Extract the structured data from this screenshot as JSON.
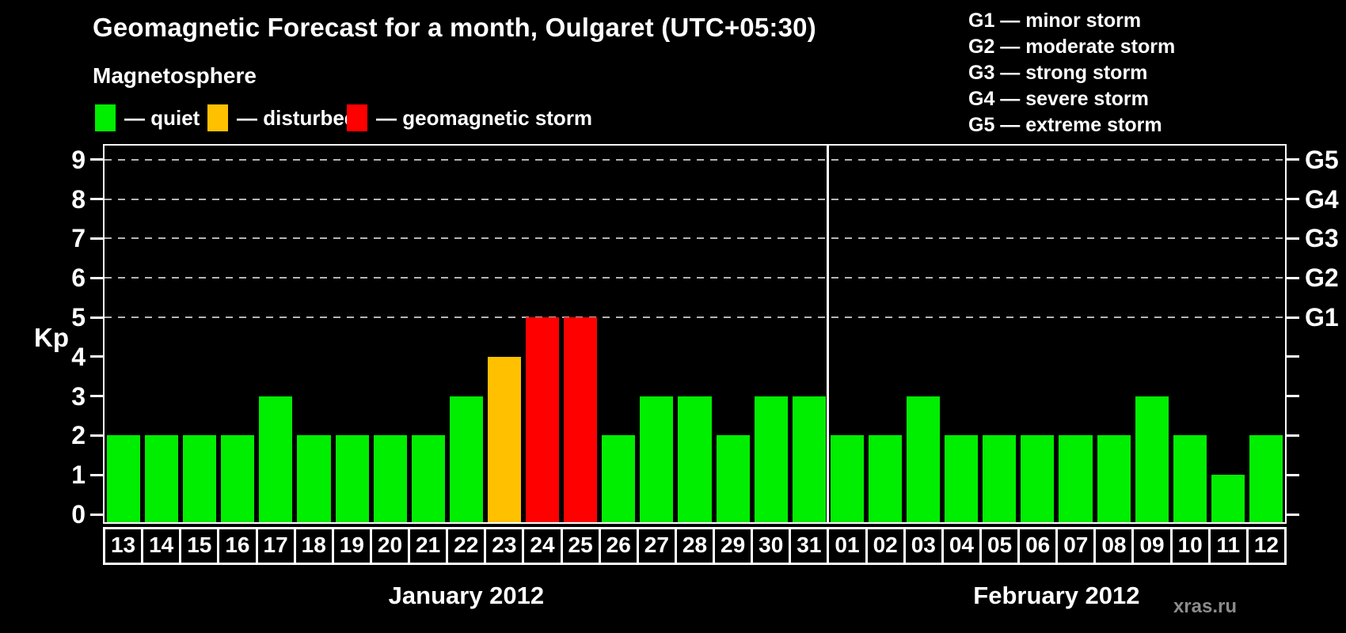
{
  "title": "Geomagnetic Forecast for a month, Oulgaret (UTC+05:30)",
  "legend": {
    "heading": "Magnetosphere",
    "items": [
      {
        "key": "quiet",
        "label": "— quiet",
        "color": "#00ee00"
      },
      {
        "key": "disturbed",
        "label": "— disturbed",
        "color": "#ffc000"
      },
      {
        "key": "storm",
        "label": "— geomagnetic storm",
        "color": "#ff0000"
      }
    ]
  },
  "g_legend": [
    "G1 — minor storm",
    "G2 — moderate storm",
    "G3 — strong storm",
    "G4 — severe storm",
    "G5 — extreme storm"
  ],
  "watermark": "xras.ru",
  "chart_data": {
    "type": "bar",
    "title": "Geomagnetic Forecast for a month, Oulgaret (UTC+05:30)",
    "xlabel": "",
    "ylabel": "Kp",
    "ylim": [
      0,
      9
    ],
    "y_ticks": [
      0,
      1,
      2,
      3,
      4,
      5,
      6,
      7,
      8,
      9
    ],
    "gridlines_at_kp": [
      5,
      6,
      7,
      8,
      9
    ],
    "grid": "horizontal-dashed",
    "legend_position": "top-left",
    "right_axis_labels": [
      {
        "kp": 5,
        "label": "G1"
      },
      {
        "kp": 6,
        "label": "G2"
      },
      {
        "kp": 7,
        "label": "G3"
      },
      {
        "kp": 8,
        "label": "G4"
      },
      {
        "kp": 9,
        "label": "G5"
      }
    ],
    "months": [
      {
        "label": "January 2012",
        "days": [
          {
            "day": "13",
            "kp": 2,
            "status": "quiet"
          },
          {
            "day": "14",
            "kp": 2,
            "status": "quiet"
          },
          {
            "day": "15",
            "kp": 2,
            "status": "quiet"
          },
          {
            "day": "16",
            "kp": 2,
            "status": "quiet"
          },
          {
            "day": "17",
            "kp": 3,
            "status": "quiet"
          },
          {
            "day": "18",
            "kp": 2,
            "status": "quiet"
          },
          {
            "day": "19",
            "kp": 2,
            "status": "quiet"
          },
          {
            "day": "20",
            "kp": 2,
            "status": "quiet"
          },
          {
            "day": "21",
            "kp": 2,
            "status": "quiet"
          },
          {
            "day": "22",
            "kp": 3,
            "status": "quiet"
          },
          {
            "day": "23",
            "kp": 4,
            "status": "disturbed"
          },
          {
            "day": "24",
            "kp": 5,
            "status": "storm"
          },
          {
            "day": "25",
            "kp": 5,
            "status": "storm"
          },
          {
            "day": "26",
            "kp": 2,
            "status": "quiet"
          },
          {
            "day": "27",
            "kp": 3,
            "status": "quiet"
          },
          {
            "day": "28",
            "kp": 3,
            "status": "quiet"
          },
          {
            "day": "29",
            "kp": 2,
            "status": "quiet"
          },
          {
            "day": "30",
            "kp": 3,
            "status": "quiet"
          },
          {
            "day": "31",
            "kp": 3,
            "status": "quiet"
          }
        ]
      },
      {
        "label": "February 2012",
        "days": [
          {
            "day": "01",
            "kp": 2,
            "status": "quiet"
          },
          {
            "day": "02",
            "kp": 2,
            "status": "quiet"
          },
          {
            "day": "03",
            "kp": 3,
            "status": "quiet"
          },
          {
            "day": "04",
            "kp": 2,
            "status": "quiet"
          },
          {
            "day": "05",
            "kp": 2,
            "status": "quiet"
          },
          {
            "day": "06",
            "kp": 2,
            "status": "quiet"
          },
          {
            "day": "07",
            "kp": 2,
            "status": "quiet"
          },
          {
            "day": "08",
            "kp": 2,
            "status": "quiet"
          },
          {
            "day": "09",
            "kp": 3,
            "status": "quiet"
          },
          {
            "day": "10",
            "kp": 2,
            "status": "quiet"
          },
          {
            "day": "11",
            "kp": 1,
            "status": "quiet"
          },
          {
            "day": "12",
            "kp": 2,
            "status": "quiet"
          }
        ]
      }
    ]
  }
}
